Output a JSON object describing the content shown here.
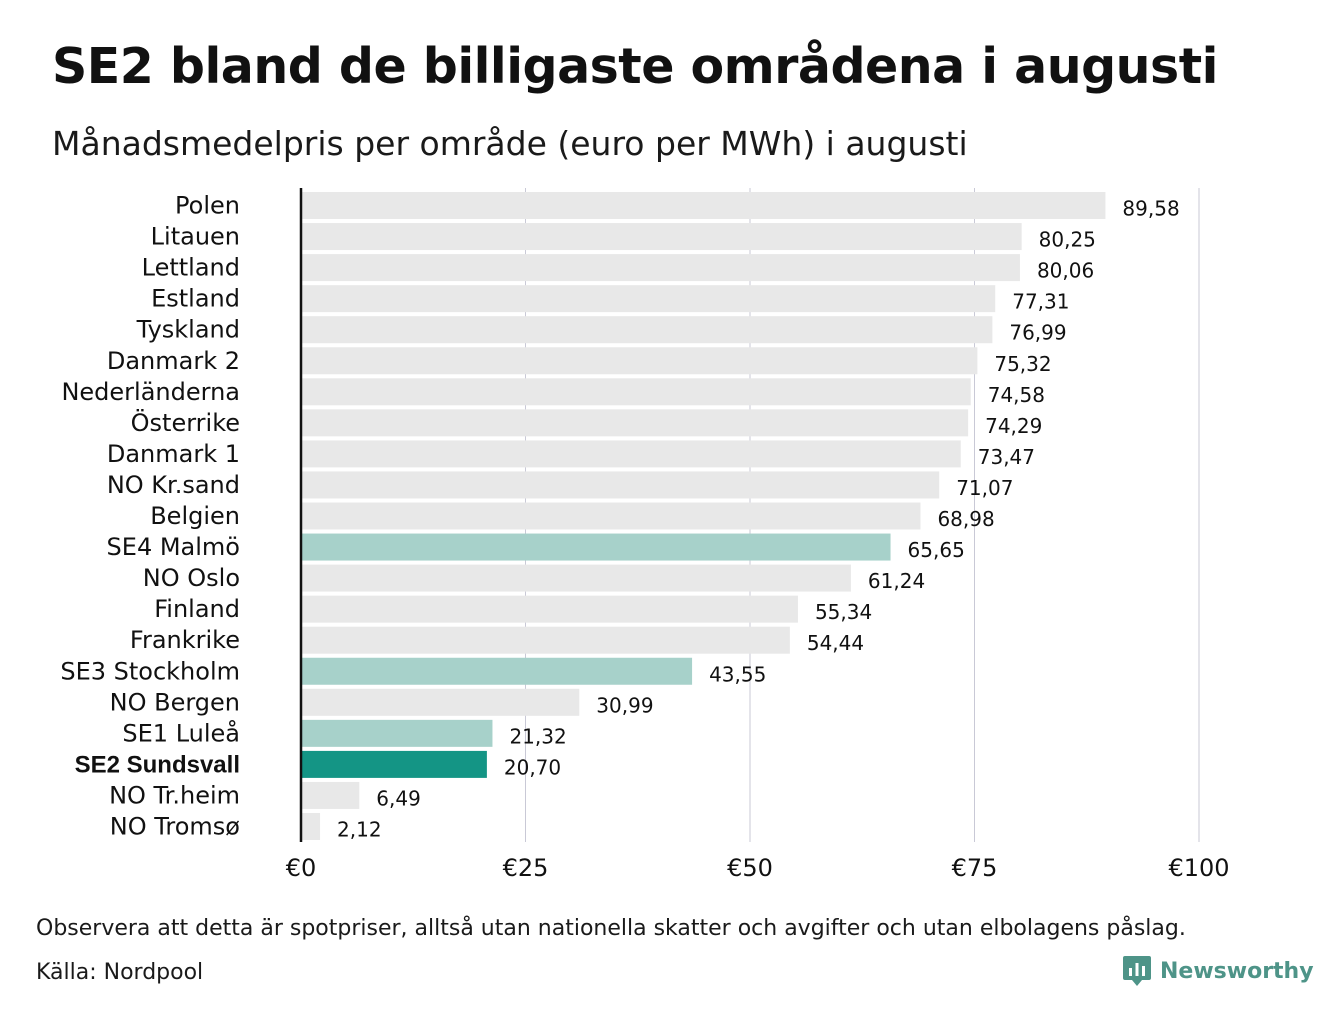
{
  "title": "SE2 bland de billigaste områdena i augusti",
  "subtitle": "Månadsmedelpris per område (euro per MWh) i augusti",
  "note": "Observera att detta är spotpriser, alltså utan nationella skatter och avgifter och utan elbolagens påslag.",
  "source": "Källa: Nordpool",
  "brand": "Newsworthy",
  "colors": {
    "default_bar": "#e8e8e8",
    "swedish_bar": "#a7d1ca",
    "highlight_bar": "#149585",
    "grid": "#c9c9d6",
    "axis": "#111111",
    "brand": "#4e9488"
  },
  "chart_data": {
    "type": "bar",
    "orientation": "horizontal",
    "categories": [
      "Polen",
      "Litauen",
      "Lettland",
      "Estland",
      "Tyskland",
      "Danmark  2",
      "Nederländerna",
      "Österrike",
      "Danmark  1",
      "NO Kr.sand",
      "Belgien",
      "SE4  Malmö",
      "NO Oslo",
      "Finland",
      "Frankrike",
      "SE3  Stockholm",
      "NO Bergen",
      "SE1  Luleå",
      "SE2 Sundsvall",
      "NO Tr.heim",
      "NO Tromsø"
    ],
    "values": [
      89.58,
      80.25,
      80.06,
      77.31,
      76.99,
      75.32,
      74.58,
      74.29,
      73.47,
      71.07,
      68.98,
      65.65,
      61.24,
      55.34,
      54.44,
      43.55,
      30.99,
      21.32,
      20.7,
      6.49,
      2.12
    ],
    "value_labels": [
      "89,58",
      "80,25",
      "80,06",
      "77,31",
      "76,99",
      "75,32",
      "74,58",
      "74,29",
      "73,47",
      "71,07",
      "68,98",
      "65,65",
      "61,24",
      "55,34",
      "54,44",
      "43,55",
      "30,99",
      "21,32",
      "20,70",
      "6,49",
      "2,12"
    ],
    "bar_style": [
      "default",
      "default",
      "default",
      "default",
      "default",
      "default",
      "default",
      "default",
      "default",
      "default",
      "default",
      "swedish",
      "default",
      "default",
      "default",
      "swedish",
      "default",
      "swedish",
      "highlight",
      "default",
      "default"
    ],
    "highlight_category": "SE2 Sundsvall",
    "xlim": [
      0,
      100
    ],
    "xticks": [
      0,
      25,
      50,
      75,
      100
    ],
    "xtick_labels": [
      "€0",
      "€25",
      "€50",
      "€75",
      "€100"
    ],
    "grid": true
  }
}
